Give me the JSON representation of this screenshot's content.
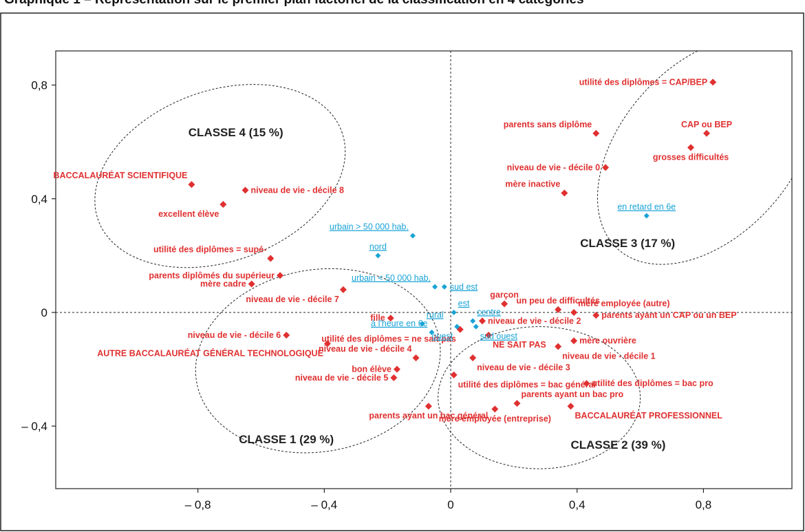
{
  "header": {
    "text": "Graphique 1 – Représentation sur le premier plan factoriel de la classification en 4 catégories"
  },
  "chart_data": {
    "type": "scatter",
    "title": "",
    "xlabel": "",
    "ylabel": "",
    "xlim": [
      -1.25,
      1.08
    ],
    "ylim": [
      -0.62,
      0.92
    ],
    "x_ticks": [
      -0.8,
      -0.4,
      0,
      0.4,
      0.8
    ],
    "x_tick_labels": [
      "– 0,8",
      "– 0,4",
      "0",
      "0,4",
      "0,8"
    ],
    "y_ticks": [
      0.8,
      0.4,
      0,
      -0.4
    ],
    "y_tick_labels": [
      "0,8",
      "0,4",
      "0",
      "– 0,4"
    ],
    "grid": false,
    "zero_lines": "dashed",
    "colors": {
      "active": "#e03030",
      "supplementary": "#19a3d6",
      "ellipse": "#222222"
    },
    "series": [
      {
        "color": "#e03030",
        "points": [
          {
            "x": 0.83,
            "y": 0.81,
            "label": "utilité des diplômes = CAP/BEP",
            "pos": "left"
          },
          {
            "x": 0.81,
            "y": 0.63,
            "label": "CAP ou BEP",
            "pos": "above"
          },
          {
            "x": 0.76,
            "y": 0.58,
            "label": "grosses difficultés",
            "pos": "below"
          },
          {
            "x": 0.46,
            "y": 0.63,
            "label": "parents sans diplôme",
            "pos": "above-left"
          },
          {
            "x": 0.49,
            "y": 0.51,
            "label": "niveau de vie - décile 0",
            "pos": "left"
          },
          {
            "x": 0.36,
            "y": 0.42,
            "label": "mère inactive",
            "pos": "above-left"
          },
          {
            "x": -0.82,
            "y": 0.45,
            "label": "BACCALAURÉAT SCIENTIFIQUE",
            "pos": "above-left"
          },
          {
            "x": -0.65,
            "y": 0.43,
            "label": "niveau de vie - décile 8",
            "pos": "right"
          },
          {
            "x": -0.72,
            "y": 0.38,
            "label": "excellent élève",
            "pos": "below-left"
          },
          {
            "x": -0.57,
            "y": 0.19,
            "label": "utilité des diplômes = supé-",
            "pos": "above-left"
          },
          {
            "x": -0.54,
            "y": 0.13,
            "label": "parents diplômés du supérieur",
            "pos": "left"
          },
          {
            "x": -0.63,
            "y": 0.1,
            "label": "mère cadre",
            "pos": "left"
          },
          {
            "x": -0.34,
            "y": 0.08,
            "label": "niveau de vie - décile 7",
            "pos": "below-left"
          },
          {
            "x": 0.17,
            "y": 0.03,
            "label": "garçon",
            "pos": "above"
          },
          {
            "x": 0.34,
            "y": 0.01,
            "label": "un peu de difficultés",
            "pos": "above"
          },
          {
            "x": 0.39,
            "y": 0.0,
            "label": "mère employée (autre)",
            "pos": "above-right"
          },
          {
            "x": 0.46,
            "y": -0.01,
            "label": "parents ayant un CAP ou un BEP",
            "pos": "right"
          },
          {
            "x": -0.19,
            "y": -0.02,
            "label": "fille",
            "pos": "left"
          },
          {
            "x": 0.1,
            "y": -0.03,
            "label": "niveau de vie - décile 2",
            "pos": "right"
          },
          {
            "x": -0.52,
            "y": -0.08,
            "label": "niveau de vie - décile 6",
            "pos": "left"
          },
          {
            "x": 0.12,
            "y": -0.08,
            "label": "NE SAIT PAS",
            "pos": "below-right"
          },
          {
            "x": 0.03,
            "y": -0.06,
            "label": "utilité des diplômes = ne sait pas",
            "pos": "below-left"
          },
          {
            "x": 0.39,
            "y": -0.1,
            "label": "mère ouvrière",
            "pos": "right"
          },
          {
            "x": 0.34,
            "y": -0.12,
            "label": "niveau de vie - décile 1",
            "pos": "below-right"
          },
          {
            "x": -0.39,
            "y": -0.11,
            "label": "AUTRE BACCALAURÉAT GÉNÉRAL TECHNOLOGIQUE",
            "pos": "below-left"
          },
          {
            "x": -0.11,
            "y": -0.16,
            "label": "niveau de vie - décile 4",
            "pos": "above-left"
          },
          {
            "x": 0.07,
            "y": -0.16,
            "label": "niveau de vie - décile 3",
            "pos": "below-right"
          },
          {
            "x": -0.17,
            "y": -0.2,
            "label": "bon élève",
            "pos": "left"
          },
          {
            "x": -0.18,
            "y": -0.23,
            "label": "niveau de vie - décile 5",
            "pos": "left"
          },
          {
            "x": 0.01,
            "y": -0.22,
            "label": "utilité des diplômes = bac général",
            "pos": "below-right"
          },
          {
            "x": 0.43,
            "y": -0.25,
            "label": "utilité des diplômes = bac pro",
            "pos": "right"
          },
          {
            "x": 0.21,
            "y": -0.32,
            "label": "parents ayant un bac pro",
            "pos": "above-right"
          },
          {
            "x": 0.38,
            "y": -0.33,
            "label": "BACCALAURÉAT PROFESSIONNEL",
            "pos": "below-right"
          },
          {
            "x": -0.07,
            "y": -0.33,
            "label": "parents ayant un bac général",
            "pos": "below"
          },
          {
            "x": 0.14,
            "y": -0.34,
            "label": "mère employée (entreprise)",
            "pos": "below"
          }
        ]
      },
      {
        "color": "#19a3d6",
        "points": [
          {
            "x": 0.62,
            "y": 0.34,
            "label": "en retard en 6e",
            "pos": "above"
          },
          {
            "x": -0.12,
            "y": 0.27,
            "label": "urbain > 50 000 hab.",
            "pos": "above-left"
          },
          {
            "x": -0.23,
            "y": 0.2,
            "label": "nord",
            "pos": "above"
          },
          {
            "x": -0.05,
            "y": 0.09,
            "label": "urbain < 50 000 hab.",
            "pos": "above-left"
          },
          {
            "x": -0.02,
            "y": 0.09,
            "label": "sud est",
            "pos": "right"
          },
          {
            "x": 0.01,
            "y": 0.0,
            "label": "est",
            "pos": "above-right"
          },
          {
            "x": 0.07,
            "y": -0.03,
            "label": "centre",
            "pos": "above-right"
          },
          {
            "x": 0.08,
            "y": -0.05,
            "label": "sud ouest",
            "pos": "below-right"
          },
          {
            "x": -0.09,
            "y": -0.04,
            "label": "rural",
            "pos": "above-right"
          },
          {
            "x": -0.06,
            "y": -0.07,
            "label": "à l'heure en 6e",
            "pos": "above-left"
          },
          {
            "x": 0.02,
            "y": -0.05,
            "label": "ouest",
            "pos": "below-left"
          }
        ]
      }
    ],
    "clusters": [
      {
        "label": "CLASSE 4 (15 %)",
        "lx": -0.68,
        "ly": 0.62,
        "cx": -0.73,
        "cy": 0.48,
        "rx": 0.41,
        "ry": 0.3,
        "rot": -20
      },
      {
        "label": "CLASSE 3 (17 %)",
        "lx": 0.56,
        "ly": 0.23,
        "cx": 0.81,
        "cy": 0.57,
        "rx": 0.42,
        "ry": 0.3,
        "rot": -48
      },
      {
        "label": "CLASSE 1 (29 %)",
        "lx": -0.52,
        "ly": -0.46,
        "cx": -0.42,
        "cy": -0.17,
        "rx": 0.39,
        "ry": 0.32,
        "rot": -10
      },
      {
        "label": "CLASSE 2 (39 %)",
        "lx": 0.53,
        "ly": -0.48,
        "cx": 0.28,
        "cy": -0.3,
        "rx": 0.32,
        "ry": 0.25,
        "rot": 0
      }
    ]
  }
}
